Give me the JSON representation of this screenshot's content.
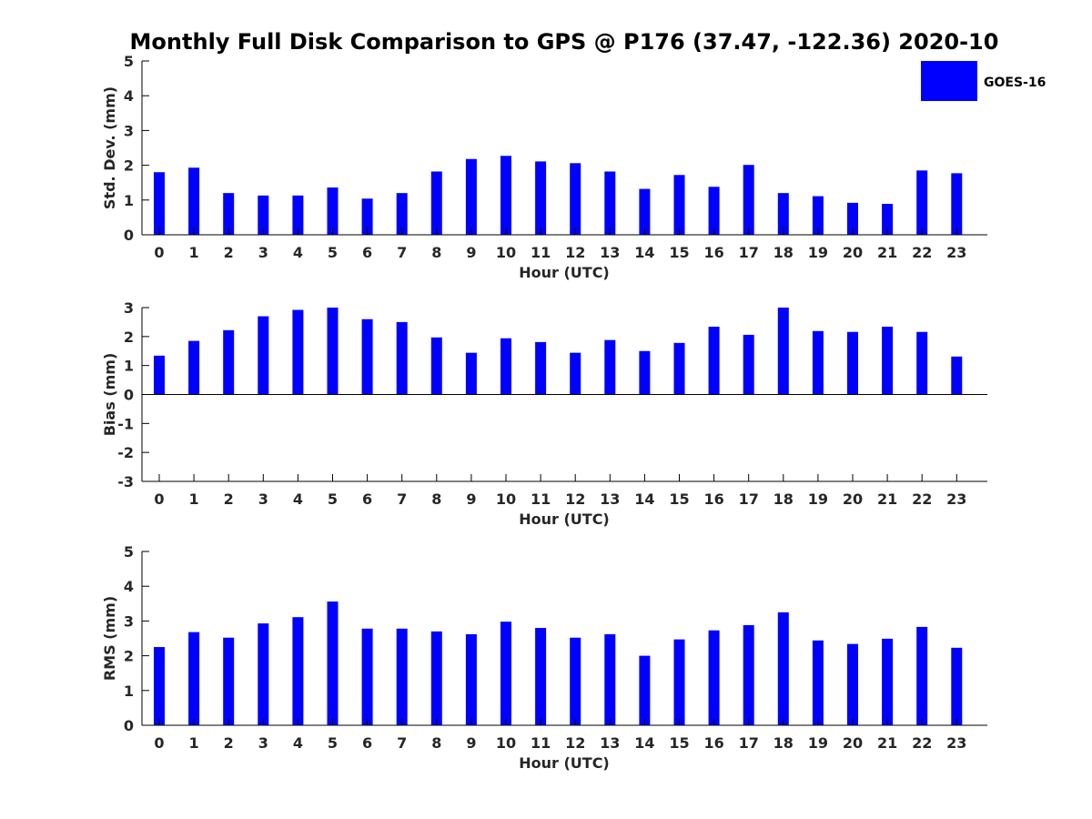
{
  "figure": {
    "title": "Monthly Full Disk Comparison to GPS @ P176 (37.47, -122.36) 2020-10",
    "legend": {
      "label": "GOES-16",
      "color": "#0000ff",
      "placement": "top-right"
    }
  },
  "chart_data": [
    {
      "type": "bar",
      "ylabel": "Std. Dev. (mm)",
      "xlabel": "Hour (UTC)",
      "ylim": [
        0,
        5
      ],
      "yticks": [
        "0",
        "1",
        "2",
        "3",
        "4",
        "5"
      ],
      "categories": [
        "0",
        "1",
        "2",
        "3",
        "4",
        "5",
        "6",
        "7",
        "8",
        "9",
        "10",
        "11",
        "12",
        "13",
        "14",
        "15",
        "16",
        "17",
        "18",
        "19",
        "20",
        "21",
        "22",
        "23"
      ],
      "series": [
        {
          "name": "GOES-16",
          "color": "#0000ff",
          "values": [
            1.8,
            1.93,
            1.2,
            1.13,
            1.13,
            1.36,
            1.04,
            1.2,
            1.82,
            2.18,
            2.27,
            2.11,
            2.06,
            1.82,
            1.32,
            1.72,
            1.38,
            2.01,
            1.2,
            1.11,
            0.92,
            0.89,
            1.85,
            1.77
          ]
        }
      ]
    },
    {
      "type": "bar",
      "ylabel": "Bias (mm)",
      "xlabel": "Hour (UTC)",
      "ylim": [
        -3,
        3
      ],
      "yticks": [
        "-3",
        "-2",
        "-1",
        "0",
        "1",
        "2",
        "3"
      ],
      "categories": [
        "0",
        "1",
        "2",
        "3",
        "4",
        "5",
        "6",
        "7",
        "8",
        "9",
        "10",
        "11",
        "12",
        "13",
        "14",
        "15",
        "16",
        "17",
        "18",
        "19",
        "20",
        "21",
        "22",
        "23"
      ],
      "series": [
        {
          "name": "GOES-16",
          "color": "#0000ff",
          "values": [
            1.34,
            1.85,
            2.22,
            2.7,
            2.92,
            3.0,
            2.6,
            2.5,
            1.97,
            1.44,
            1.94,
            1.81,
            1.44,
            1.88,
            1.5,
            1.78,
            2.34,
            2.06,
            3.0,
            2.19,
            2.16,
            2.34,
            2.16,
            1.31
          ]
        }
      ]
    },
    {
      "type": "bar",
      "ylabel": "RMS (mm)",
      "xlabel": "Hour (UTC)",
      "ylim": [
        0,
        5
      ],
      "yticks": [
        "0",
        "1",
        "2",
        "3",
        "4",
        "5"
      ],
      "categories": [
        "0",
        "1",
        "2",
        "3",
        "4",
        "5",
        "6",
        "7",
        "8",
        "9",
        "10",
        "11",
        "12",
        "13",
        "14",
        "15",
        "16",
        "17",
        "18",
        "19",
        "20",
        "21",
        "22",
        "23"
      ],
      "series": [
        {
          "name": "GOES-16",
          "color": "#0000ff",
          "values": [
            2.25,
            2.68,
            2.52,
            2.93,
            3.11,
            3.56,
            2.78,
            2.78,
            2.7,
            2.62,
            2.98,
            2.8,
            2.52,
            2.62,
            2.0,
            2.47,
            2.73,
            2.88,
            3.25,
            2.44,
            2.34,
            2.49,
            2.83,
            2.23
          ]
        }
      ]
    }
  ]
}
